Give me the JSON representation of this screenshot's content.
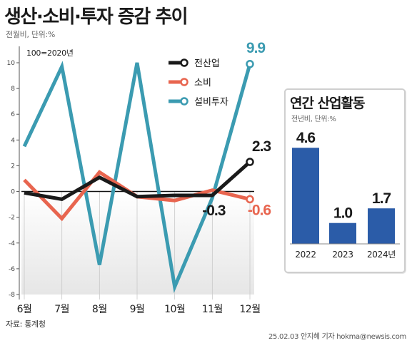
{
  "title": "생산·소비·투자 증감 추이",
  "subtitle": "전월비, 단위:%",
  "source": "자료: 통계청",
  "credit": "25.02.03 안지혜 기자 hokma@newsis.com",
  "chart_data": [
    {
      "type": "line",
      "note": "100=2020년",
      "categories": [
        "6월",
        "7월",
        "8월",
        "9월",
        "10월",
        "11월",
        "12월"
      ],
      "ylim": [
        -8,
        10
      ],
      "yticks": [
        10,
        8,
        6,
        4,
        2,
        0,
        -2,
        -4,
        -6,
        -8
      ],
      "grid": false,
      "legend_position": "top-right",
      "series": [
        {
          "name": "전산업",
          "color": "#1a1a1a",
          "values": [
            -0.1,
            -0.6,
            1.1,
            -0.4,
            -0.3,
            -0.3,
            2.3
          ]
        },
        {
          "name": "소비",
          "color": "#e8654f",
          "values": [
            0.9,
            -2.1,
            1.5,
            -0.4,
            -0.7,
            0.1,
            -0.6
          ]
        },
        {
          "name": "설비투자",
          "color": "#3b9bb1",
          "values": [
            3.5,
            9.7,
            -5.7,
            10.0,
            -7.4,
            -0.5,
            9.9
          ]
        }
      ],
      "data_labels": [
        {
          "series": "설비투자",
          "category": "12월",
          "text": "9.9"
        },
        {
          "series": "전산업",
          "category": "12월",
          "text": "2.3"
        },
        {
          "series": "전산업",
          "category": "11월",
          "text": "-0.3"
        },
        {
          "series": "소비",
          "category": "12월",
          "text": "-0.6"
        }
      ]
    },
    {
      "type": "bar",
      "title": "연간 산업활동",
      "subtitle": "전년비, 단위:%",
      "categories": [
        "2022",
        "2023",
        "2024년"
      ],
      "values": [
        4.6,
        1.0,
        1.7
      ],
      "value_labels": [
        "4.6",
        "1.0",
        "1.7"
      ],
      "color": "#2b5ca8"
    }
  ]
}
